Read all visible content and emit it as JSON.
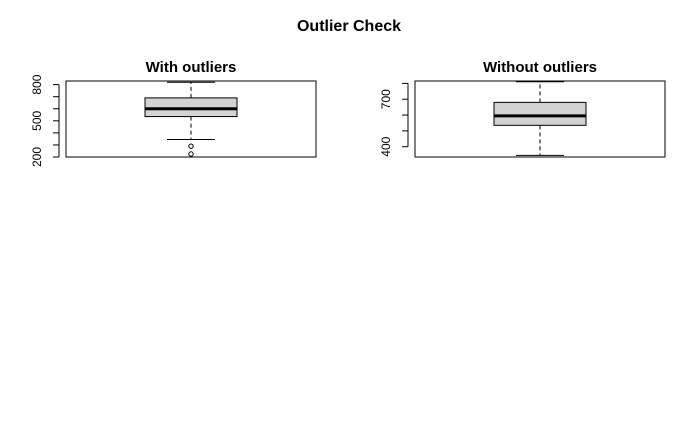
{
  "title": "Outlier Check",
  "colors": {
    "box_fill": "#d3d3d3",
    "stroke": "#000000",
    "background": "#ffffff"
  },
  "chart_data": [
    {
      "type": "boxplot",
      "title": "With outliers",
      "xlabel": "",
      "ylabel": "",
      "ylim": [
        200,
        830
      ],
      "yticks": [
        200,
        300,
        400,
        500,
        600,
        700,
        800
      ],
      "ytick_labels": [
        "200",
        "",
        "",
        "500",
        "",
        "",
        "800"
      ],
      "stats": {
        "whisker_low": 345,
        "q1": 535,
        "median": 600,
        "q3": 690,
        "whisker_high": 820
      },
      "outliers": [
        290,
        225
      ]
    },
    {
      "type": "boxplot",
      "title": "Without outliers",
      "xlabel": "",
      "ylabel": "",
      "ylim": [
        335,
        815
      ],
      "yticks": [
        400,
        500,
        600,
        700,
        800
      ],
      "ytick_labels": [
        "400",
        "",
        "",
        "700",
        ""
      ],
      "stats": {
        "whisker_low": 345,
        "q1": 535,
        "median": 595,
        "q3": 680,
        "whisker_high": 810
      },
      "outliers": []
    }
  ]
}
